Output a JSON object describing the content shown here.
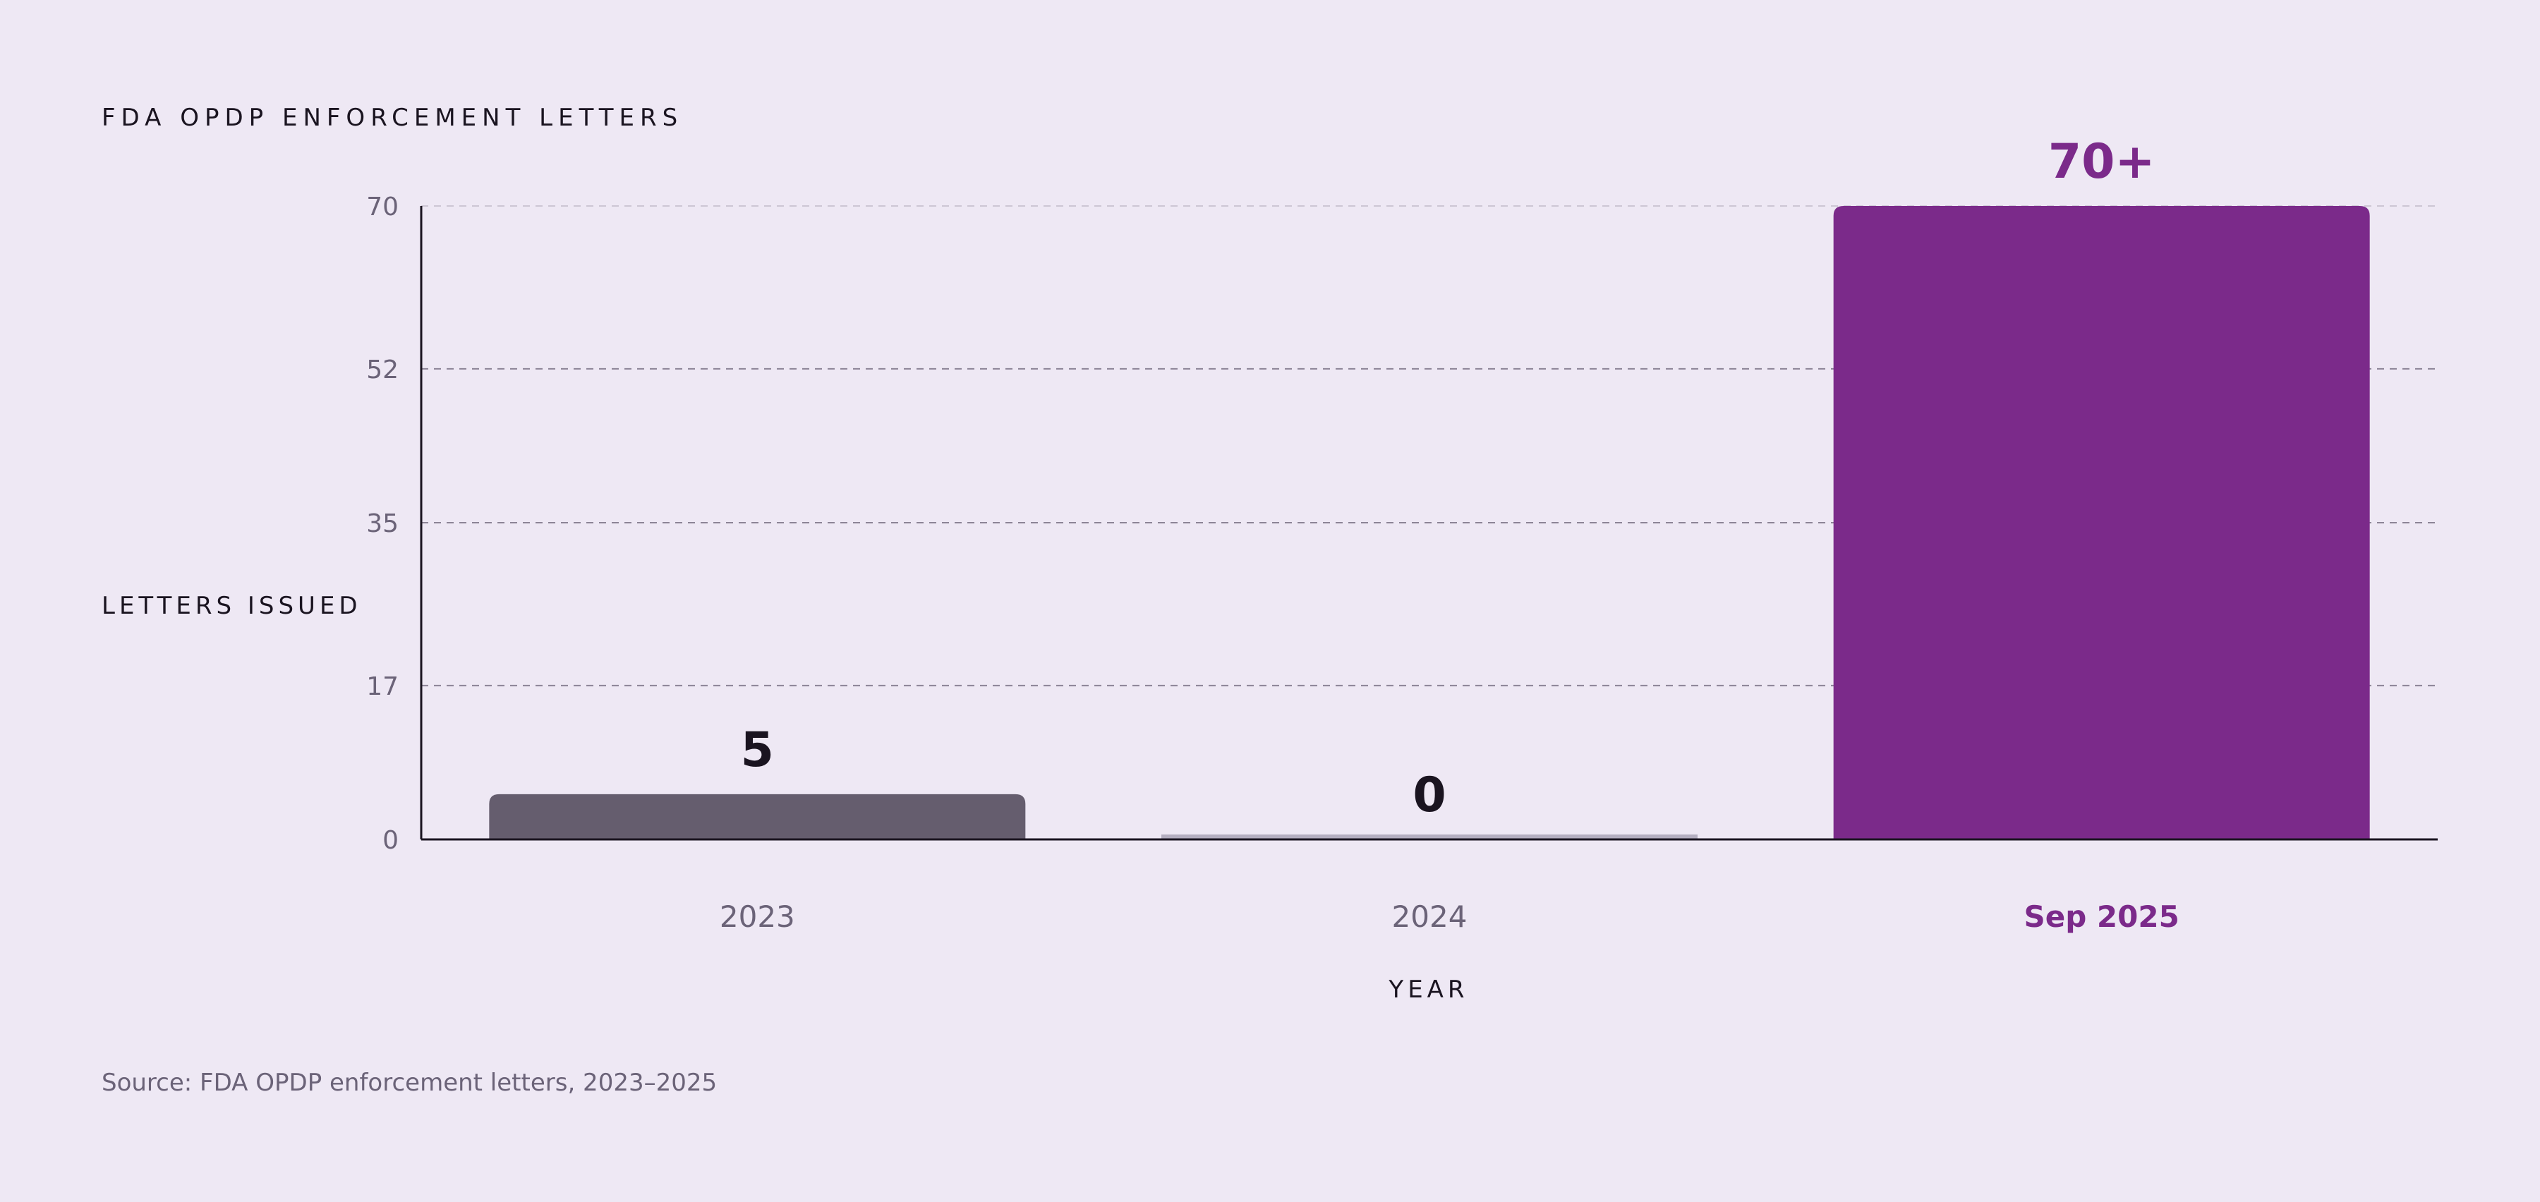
{
  "chart_data": {
    "type": "bar",
    "title": "FDA OPDP ENFORCEMENT LETTERS",
    "ylabel": "LETTERS ISSUED",
    "xlabel": "YEAR",
    "categories": [
      "2023",
      "2024",
      "Sep 2025"
    ],
    "values": [
      5,
      0,
      70
    ],
    "value_labels": [
      "5",
      "0",
      "70+"
    ],
    "yticks": [
      0,
      17,
      35,
      52,
      70
    ],
    "ylim": [
      0,
      70
    ],
    "grid": true,
    "highlight_index": 2,
    "source": "Source: FDA OPDP enforcement letters, 2023–2025"
  },
  "colors": {
    "background": "#eee8f4",
    "bar_default": "#655d6e",
    "bar_zero": "#b4aec0",
    "bar_highlight": "#7b2a8a",
    "axis": "#1a1420",
    "grid": "#8c8496"
  }
}
